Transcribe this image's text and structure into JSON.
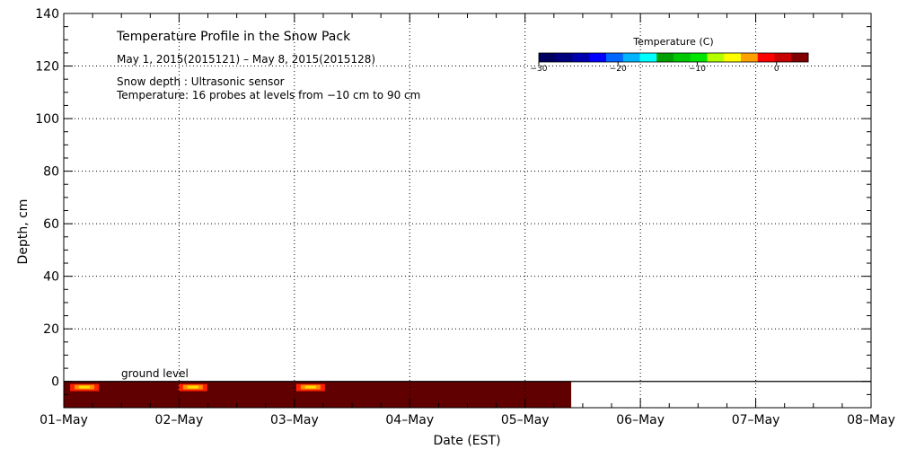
{
  "chart_data": {
    "type": "heatmap",
    "title": "Temperature Profile in the Snow Pack",
    "subtitle": "May  1, 2015(2015121) – May  8, 2015(2015128)",
    "info_lines": [
      "Snow depth : Ultrasonic sensor",
      "Temperature: 16 probes at levels from −10 cm to 90 cm"
    ],
    "xlabel": "Date (EST)",
    "ylabel": "Depth, cm",
    "x_categories": [
      "01–May",
      "02–May",
      "03–May",
      "04–May",
      "05–May",
      "06–May",
      "07–May",
      "08–May"
    ],
    "ylim": [
      -10,
      140
    ],
    "yticks": [
      0,
      20,
      40,
      60,
      80,
      100,
      120,
      140
    ],
    "grid": true,
    "ground_label": "ground level",
    "colorbar": {
      "title": "Temperature (C)",
      "ticks": [
        -30,
        -20,
        -10,
        0
      ],
      "tick_labels": [
        "−30",
        "−20",
        "−10",
        "0"
      ],
      "range": [
        -30,
        4
      ],
      "colors": [
        "#000060",
        "#00007f",
        "#0000b0",
        "#0000ff",
        "#0066ff",
        "#00b4ff",
        "#00ffff",
        "#00a000",
        "#00c800",
        "#00e600",
        "#b4ff00",
        "#ffff00",
        "#ffa000",
        "#ff0000",
        "#c80000",
        "#800000"
      ]
    },
    "data_extent": {
      "x_start_day": 0,
      "x_end_day": 4.4,
      "depth_top": 0,
      "depth_bottom": -10,
      "dominant_value": 4,
      "dominant_color": "#600000"
    },
    "warm_spots": [
      {
        "day": 0.18,
        "depth": -2,
        "color": "#ffe000"
      },
      {
        "day": 1.12,
        "depth": -2,
        "color": "#ffe000"
      },
      {
        "day": 2.14,
        "depth": -2,
        "color": "#ffe000"
      }
    ]
  }
}
